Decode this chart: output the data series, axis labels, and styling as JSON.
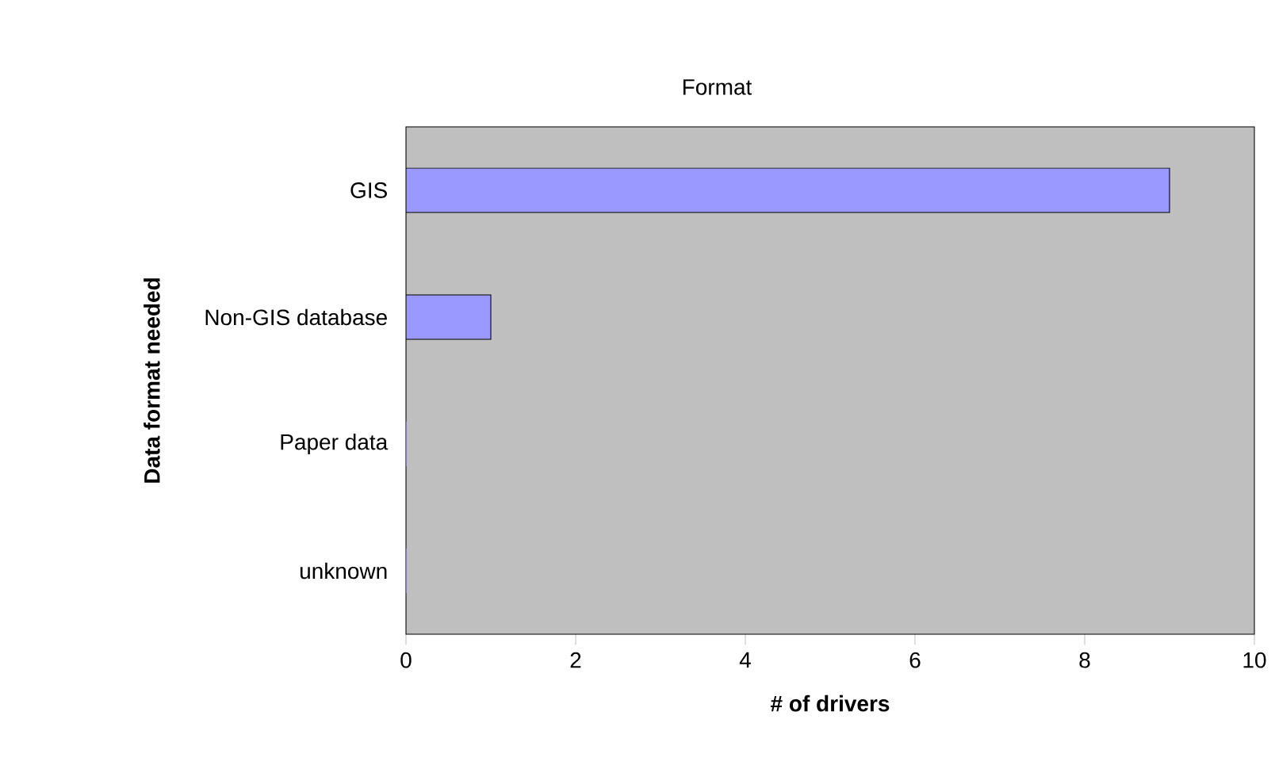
{
  "chart_data": {
    "type": "bar",
    "orientation": "horizontal",
    "title": "Format",
    "xlabel": "# of drivers",
    "ylabel": "Data format needed",
    "categories": [
      "GIS",
      "Non-GIS database",
      "Paper data",
      "unknown"
    ],
    "values": [
      9,
      1,
      0,
      0
    ],
    "color": "#9999ff",
    "xlim": [
      0,
      10
    ],
    "xticks": [
      0,
      2,
      4,
      6,
      8,
      10
    ],
    "grid": false
  }
}
